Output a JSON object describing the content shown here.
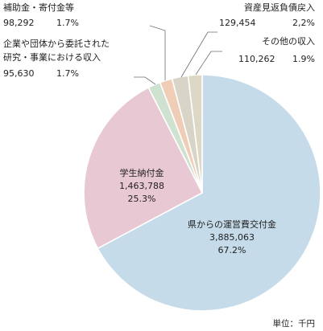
{
  "chart_data": {
    "type": "pie",
    "unit_label": "単位：千円",
    "slices": [
      {
        "name": "県からの運営費交付金",
        "value": "3,885,063",
        "percent": "67.2%",
        "share": 67.2,
        "color": "#c5dbe9"
      },
      {
        "name": "学生納付金",
        "value": "1,463,788",
        "percent": "25.3%",
        "share": 25.3,
        "color": "#e8c9d3"
      },
      {
        "name_lines": [
          "企業や団体から委託された",
          "研究・事業における収入"
        ],
        "value": "95,630",
        "percent": "1.7%",
        "share": 1.7,
        "color": "#cfe1d0"
      },
      {
        "name": "補助金・寄付金等",
        "value": "98,292",
        "percent": "1.7%",
        "share": 1.7,
        "color": "#f0cdb6"
      },
      {
        "name": "資産見返負債戻入",
        "value": "129,454",
        "percent": "2,2%",
        "share": 2.2,
        "color": "#d9d4c8"
      },
      {
        "name": "その他の収入",
        "value": "110,262",
        "percent": "1.9%",
        "share": 1.9,
        "color": "#ddd8c6"
      }
    ]
  }
}
